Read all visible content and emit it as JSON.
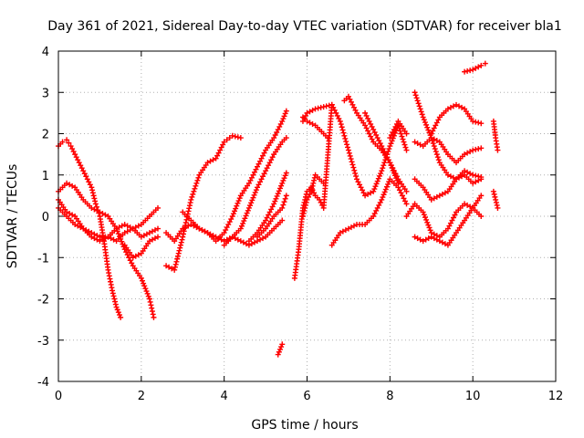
{
  "chart_data": {
    "type": "scatter",
    "title": "Day 361 of 2021, Sidereal Day-to-day VTEC variation (SDTVAR) for receiver bla1",
    "xlabel": "GPS time / hours",
    "ylabel": "SDTVAR / TECUs",
    "xlim": [
      0,
      12
    ],
    "ylim": [
      -4,
      4
    ],
    "xticks": [
      "0",
      "2",
      "4",
      "6",
      "8",
      "10",
      "12"
    ],
    "yticks": [
      "-4",
      "-3",
      "-2",
      "-1",
      "0",
      "1",
      "2",
      "3",
      "4"
    ],
    "grid": true,
    "marker": "+",
    "color": "#ff0000",
    "series": [
      {
        "x": [
          0.0,
          0.1,
          0.2,
          0.3,
          0.4,
          0.5,
          0.6,
          0.7,
          0.8,
          0.9,
          1.0,
          1.1,
          1.2,
          1.3,
          1.4,
          1.5
        ],
        "y": [
          1.7,
          1.8,
          1.85,
          1.7,
          1.5,
          1.3,
          1.1,
          0.9,
          0.7,
          0.3,
          0.0,
          -0.6,
          -1.3,
          -1.8,
          -2.2,
          -2.45
        ]
      },
      {
        "x": [
          0.0,
          0.2,
          0.4,
          0.6,
          0.8,
          1.0,
          1.2,
          1.4,
          1.6,
          1.8,
          2.0,
          2.2,
          2.3
        ],
        "y": [
          0.6,
          0.8,
          0.7,
          0.4,
          0.2,
          0.1,
          0.0,
          -0.3,
          -0.8,
          -1.2,
          -1.5,
          -2.0,
          -2.45
        ]
      },
      {
        "x": [
          0.0,
          0.2,
          0.4,
          0.6,
          0.8,
          1.0,
          1.2,
          1.4,
          1.6,
          1.8,
          2.0,
          2.2,
          2.4
        ],
        "y": [
          0.4,
          0.1,
          0.0,
          -0.3,
          -0.4,
          -0.5,
          -0.5,
          -0.6,
          -0.4,
          -0.3,
          -0.5,
          -0.4,
          -0.3
        ]
      },
      {
        "x": [
          0.0,
          0.2,
          0.4,
          0.6,
          0.8,
          1.0,
          1.2,
          1.4,
          1.6,
          1.8,
          2.0,
          2.2,
          2.4
        ],
        "y": [
          0.2,
          0.0,
          -0.2,
          -0.3,
          -0.5,
          -0.6,
          -0.5,
          -0.3,
          -0.2,
          -0.3,
          -0.2,
          0.0,
          0.2
        ]
      },
      {
        "x": [
          1.6,
          1.8,
          2.0,
          2.2,
          2.4
        ],
        "y": [
          -0.7,
          -1.0,
          -0.9,
          -0.6,
          -0.5
        ]
      },
      {
        "x": [
          2.6,
          2.8,
          3.0,
          3.2,
          3.4,
          3.6,
          3.8,
          4.0,
          4.2,
          4.4,
          4.6,
          4.8,
          5.0,
          5.2,
          5.4
        ],
        "y": [
          -0.4,
          -0.6,
          -0.3,
          -0.2,
          -0.3,
          -0.4,
          -0.5,
          -0.6,
          -0.5,
          -0.6,
          -0.7,
          -0.6,
          -0.5,
          -0.3,
          -0.1
        ]
      },
      {
        "x": [
          2.6,
          2.8,
          3.0,
          3.2,
          3.4,
          3.6,
          3.8,
          4.0,
          4.2,
          4.4
        ],
        "y": [
          -1.2,
          -1.3,
          -0.5,
          0.4,
          1.0,
          1.3,
          1.4,
          1.8,
          1.95,
          1.9
        ]
      },
      {
        "x": [
          3.0,
          3.2,
          3.4,
          3.6,
          3.8,
          4.0,
          4.2,
          4.4,
          4.6,
          4.8,
          5.0,
          5.2,
          5.4,
          5.5
        ],
        "y": [
          0.1,
          -0.1,
          -0.3,
          -0.4,
          -0.6,
          -0.4,
          0.0,
          0.5,
          0.8,
          1.2,
          1.6,
          1.9,
          2.3,
          2.55
        ]
      },
      {
        "x": [
          4.0,
          4.2,
          4.4,
          4.6,
          4.8,
          5.0,
          5.2,
          5.4,
          5.5
        ],
        "y": [
          -0.7,
          -0.5,
          -0.3,
          0.2,
          0.7,
          1.1,
          1.5,
          1.8,
          1.9
        ]
      },
      {
        "x": [
          4.6,
          4.8,
          5.0,
          5.2,
          5.4,
          5.5
        ],
        "y": [
          -0.6,
          -0.4,
          -0.1,
          0.3,
          0.8,
          1.05
        ]
      },
      {
        "x": [
          4.8,
          5.0,
          5.2,
          5.4,
          5.5
        ],
        "y": [
          -0.5,
          -0.3,
          0.0,
          0.2,
          0.5
        ]
      },
      {
        "x": [
          5.7,
          5.8,
          5.9,
          6.0,
          6.1,
          6.2,
          6.3,
          6.4,
          6.6
        ],
        "y": [
          -1.5,
          -0.8,
          0.2,
          0.6,
          0.7,
          0.5,
          0.4,
          0.2,
          2.7
        ]
      },
      {
        "x": [
          5.9,
          6.0,
          6.1,
          6.2,
          6.3,
          6.4
        ],
        "y": [
          0.0,
          0.4,
          0.6,
          1.0,
          0.9,
          0.8
        ]
      },
      {
        "x": [
          5.9,
          6.0,
          6.2,
          6.4,
          6.6
        ],
        "y": [
          2.3,
          2.5,
          2.6,
          2.65,
          2.7
        ]
      },
      {
        "x": [
          5.9,
          6.0,
          6.2,
          6.4,
          6.5
        ],
        "y": [
          2.4,
          2.3,
          2.2,
          2.0,
          1.9
        ]
      },
      {
        "x": [
          5.3,
          5.4
        ],
        "y": [
          -3.35,
          -3.1
        ]
      },
      {
        "x": [
          6.6,
          6.8,
          7.0,
          7.2,
          7.4,
          7.6,
          7.8,
          8.0,
          8.2,
          8.4
        ],
        "y": [
          2.7,
          2.3,
          1.6,
          0.9,
          0.5,
          0.6,
          1.1,
          1.7,
          2.2,
          1.6
        ]
      },
      {
        "x": [
          6.6,
          6.8,
          7.0,
          7.2,
          7.4,
          7.6,
          7.8,
          8.0,
          8.2,
          8.4
        ],
        "y": [
          -0.7,
          -0.4,
          -0.3,
          -0.2,
          -0.2,
          0.0,
          0.4,
          0.9,
          0.7,
          0.3
        ]
      },
      {
        "x": [
          6.9,
          7.0,
          7.2,
          7.4,
          7.6,
          7.8,
          8.0,
          8.2
        ],
        "y": [
          2.8,
          2.9,
          2.5,
          2.2,
          1.8,
          1.6,
          1.3,
          0.8
        ]
      },
      {
        "x": [
          7.4,
          7.6,
          7.8,
          8.0,
          8.2,
          8.4
        ],
        "y": [
          2.5,
          2.1,
          1.7,
          1.3,
          0.9,
          0.6
        ]
      },
      {
        "x": [
          8.0,
          8.2,
          8.4
        ],
        "y": [
          1.9,
          2.3,
          2.0
        ]
      },
      {
        "x": [
          8.6,
          8.8,
          9.0,
          9.2,
          9.4,
          9.6,
          9.8,
          10.0,
          10.2
        ],
        "y": [
          3.0,
          2.4,
          1.9,
          1.3,
          1.0,
          0.9,
          1.1,
          1.0,
          0.95
        ]
      },
      {
        "x": [
          8.6,
          8.8,
          9.0,
          9.2,
          9.4,
          9.6,
          9.8,
          10.0,
          10.2
        ],
        "y": [
          1.8,
          1.7,
          1.9,
          1.8,
          1.5,
          1.3,
          1.5,
          1.6,
          1.65
        ]
      },
      {
        "x": [
          8.6,
          8.8,
          9.0,
          9.2,
          9.4,
          9.6,
          9.8,
          10.0,
          10.2
        ],
        "y": [
          0.9,
          0.7,
          0.4,
          0.5,
          0.6,
          0.9,
          1.0,
          0.8,
          0.9
        ]
      },
      {
        "x": [
          8.6,
          8.8,
          9.0,
          9.2,
          9.4,
          9.6,
          9.8,
          10.0,
          10.2
        ],
        "y": [
          -0.5,
          -0.6,
          -0.5,
          -0.6,
          -0.7,
          -0.4,
          -0.1,
          0.2,
          0.5
        ]
      },
      {
        "x": [
          8.4,
          8.6,
          8.8,
          9.0,
          9.2,
          9.4,
          9.6,
          9.8,
          10.0,
          10.2
        ],
        "y": [
          0.0,
          0.3,
          0.1,
          -0.4,
          -0.5,
          -0.3,
          0.1,
          0.3,
          0.2,
          0.0
        ]
      },
      {
        "x": [
          9.0,
          9.2,
          9.4,
          9.6,
          9.8,
          10.0,
          10.2
        ],
        "y": [
          2.0,
          2.4,
          2.6,
          2.7,
          2.6,
          2.3,
          2.25
        ]
      },
      {
        "x": [
          9.8,
          10.0,
          10.2,
          10.3
        ],
        "y": [
          3.5,
          3.55,
          3.65,
          3.7
        ]
      },
      {
        "x": [
          10.5,
          10.55,
          10.6
        ],
        "y": [
          2.3,
          1.9,
          1.6
        ]
      },
      {
        "x": [
          10.5,
          10.55,
          10.6
        ],
        "y": [
          0.6,
          0.4,
          0.2
        ]
      }
    ]
  }
}
